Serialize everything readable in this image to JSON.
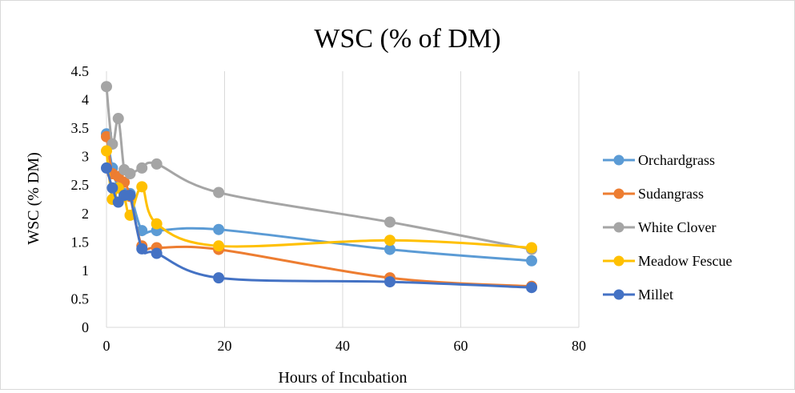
{
  "chart_data": {
    "type": "line",
    "title": "WSC (% of DM)",
    "xlabel": "Hours of Incubation",
    "ylabel": "WSC (% DM)",
    "xlim": [
      0,
      80
    ],
    "ylim": [
      0,
      4.5
    ],
    "x_ticks": [
      0,
      20,
      40,
      60,
      80
    ],
    "y_ticks": [
      0,
      0.5,
      1,
      1.5,
      2,
      2.5,
      3,
      3.5,
      4,
      4.5
    ],
    "x_tick_labels": [
      "0",
      "20",
      "40",
      "60",
      "80"
    ],
    "y_tick_labels": [
      "0",
      "0.5",
      "1",
      "1.5",
      "2",
      "2.5",
      "3",
      "3.5",
      "4",
      "4.5"
    ],
    "grid": "vertical",
    "legend_position": "right",
    "smooth": true,
    "series": [
      {
        "name": "Orchardgrass",
        "color": "#5b9bd5",
        "x": [
          0,
          1,
          2,
          3,
          4,
          6,
          8.5,
          19,
          48,
          72
        ],
        "y": [
          3.4,
          2.8,
          2.45,
          2.35,
          2.35,
          1.7,
          1.7,
          1.72,
          1.37,
          1.17
        ]
      },
      {
        "name": "Sudangrass",
        "color": "#ed7d31",
        "x": [
          0,
          1,
          2,
          3,
          4,
          6,
          8.5,
          19,
          48,
          72
        ],
        "y": [
          3.35,
          2.7,
          2.65,
          2.55,
          2.3,
          1.43,
          1.4,
          1.37,
          0.87,
          0.72
        ]
      },
      {
        "name": "White Clover",
        "color": "#a5a5a5",
        "x": [
          0,
          1,
          2,
          3,
          4,
          6,
          8.5,
          19,
          48,
          72
        ],
        "y": [
          4.23,
          3.22,
          3.67,
          2.77,
          2.7,
          2.8,
          2.87,
          2.37,
          1.85,
          1.37
        ]
      },
      {
        "name": "Meadow Fescue",
        "color": "#ffc000",
        "x": [
          0,
          1,
          2,
          3,
          4,
          6,
          8.5,
          19,
          48,
          72
        ],
        "y": [
          3.1,
          2.25,
          2.45,
          2.3,
          1.97,
          2.47,
          1.82,
          1.43,
          1.53,
          1.4
        ]
      },
      {
        "name": "Millet",
        "color": "#4472c4",
        "x": [
          0,
          1,
          2,
          3,
          4,
          6,
          8.5,
          19,
          48,
          72
        ],
        "y": [
          2.8,
          2.45,
          2.2,
          2.32,
          2.32,
          1.38,
          1.3,
          0.87,
          0.8,
          0.7
        ]
      }
    ]
  }
}
